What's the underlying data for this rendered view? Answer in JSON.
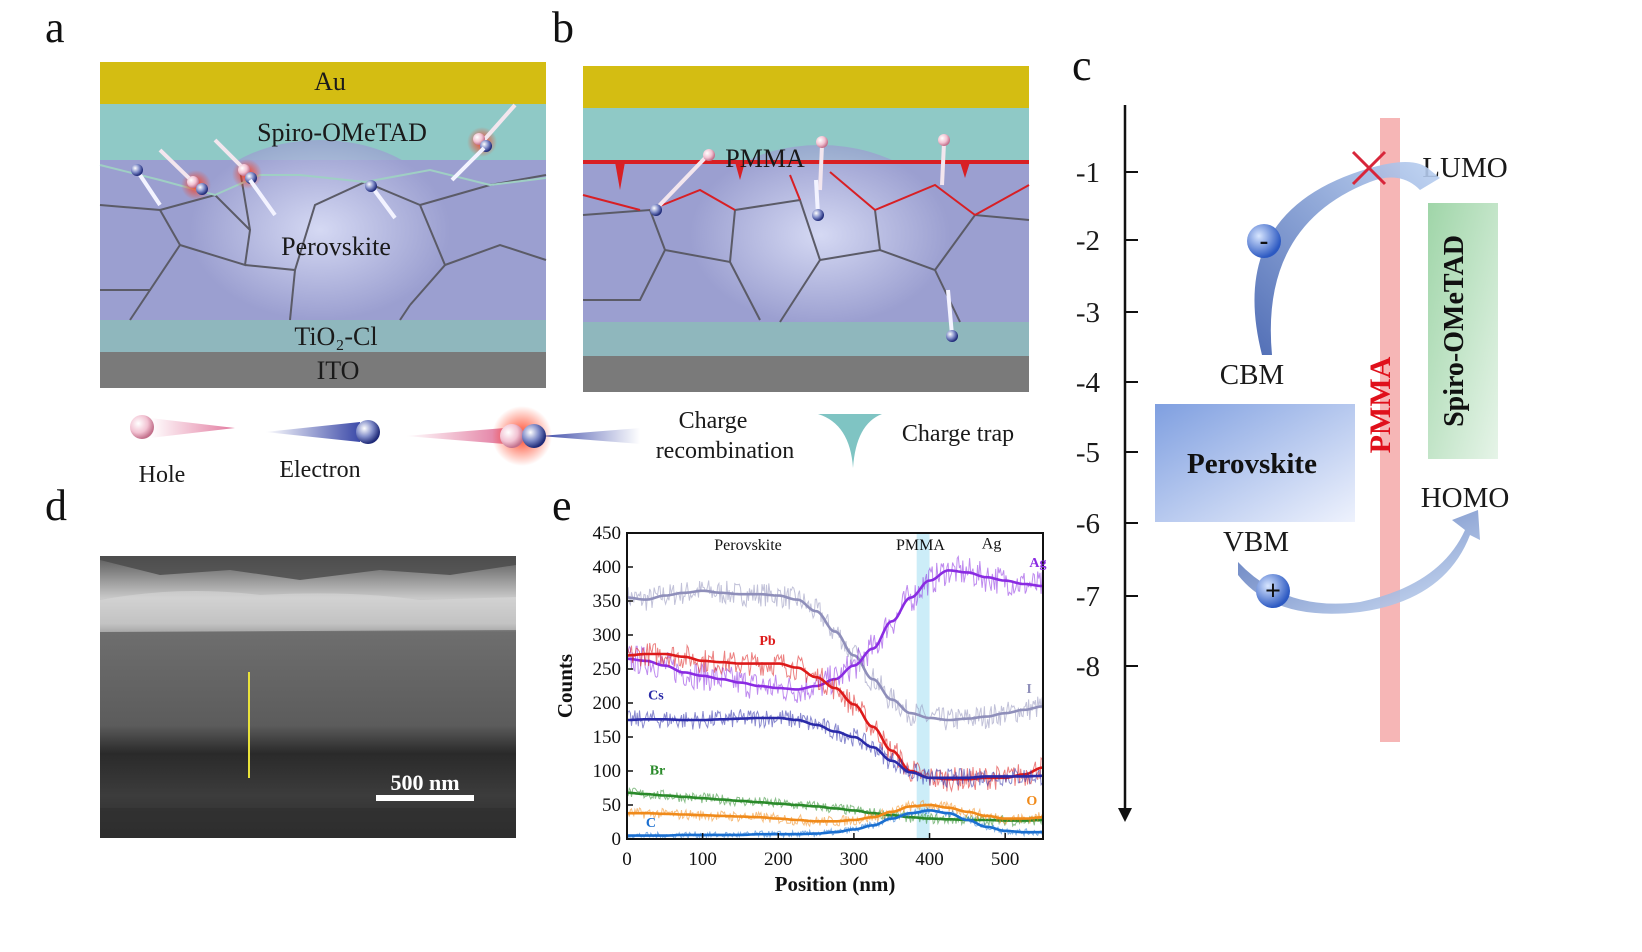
{
  "figure": {
    "panel_labels": [
      "a",
      "b",
      "c",
      "d",
      "e"
    ]
  },
  "panel_a": {
    "layers": [
      "Au",
      "Spiro-OMeTAD",
      "Perovskite",
      "TiO₂-Cl",
      "ITO"
    ]
  },
  "panel_b": {
    "pmma_label": "PMMA"
  },
  "legend": {
    "hole": "Hole",
    "electron": "Electron",
    "charge_recombination_line1": "Charge",
    "charge_recombination_line2": "recombination",
    "charge_trap": "Charge trap"
  },
  "panel_c": {
    "y_ticks": [
      "-1",
      "-2",
      "-3",
      "-4",
      "-5",
      "-6",
      "-7",
      "-8"
    ],
    "lumo": "LUMO",
    "homo": "HOMO",
    "cbm": "CBM",
    "vbm": "VBM",
    "perovskite": "Perovskite",
    "pmma": "PMMA",
    "spiro": "Spiro-OMeTAD",
    "minus": "-",
    "plus": "+",
    "colors": {
      "perovskite_box": "#7f9fe0",
      "pmma_bar": "#f6b6b6",
      "spiro_box": "#9fd5a8",
      "pmma_text": "#e0101b"
    }
  },
  "panel_d": {
    "scale_bar": "500 nm"
  },
  "chart_data": {
    "type": "line",
    "title": "",
    "xlabel": "Position (nm)",
    "ylabel": "Counts",
    "xlim": [
      0,
      550
    ],
    "ylim": [
      0,
      450
    ],
    "x_ticks": [
      "0",
      "100",
      "200",
      "300",
      "400",
      "500"
    ],
    "y_ticks": [
      "0",
      "50",
      "100",
      "150",
      "200",
      "250",
      "300",
      "350",
      "400",
      "450"
    ],
    "region_labels": {
      "perovskite": "Perovskite",
      "pmma": "PMMA",
      "ag": "Ag"
    },
    "pmma_band": [
      383,
      400
    ],
    "x": [
      0,
      25,
      50,
      75,
      100,
      125,
      150,
      175,
      200,
      225,
      250,
      275,
      300,
      325,
      350,
      375,
      400,
      425,
      450,
      475,
      500,
      525,
      550
    ],
    "series": [
      {
        "name": "I",
        "color": "#8f8fba",
        "values": [
          355,
          352,
          358,
          362,
          365,
          362,
          360,
          360,
          358,
          352,
          335,
          305,
          270,
          235,
          205,
          185,
          178,
          175,
          177,
          180,
          185,
          190,
          195
        ]
      },
      {
        "name": "Ag",
        "color": "#8a2be2",
        "values": [
          265,
          262,
          255,
          245,
          240,
          235,
          230,
          225,
          222,
          220,
          225,
          235,
          255,
          280,
          320,
          355,
          380,
          395,
          392,
          385,
          380,
          375,
          372
        ]
      },
      {
        "name": "Pb",
        "color": "#dd1a1a",
        "values": [
          270,
          272,
          272,
          268,
          262,
          260,
          258,
          258,
          258,
          252,
          238,
          222,
          198,
          165,
          130,
          100,
          90,
          88,
          88,
          90,
          90,
          95,
          105
        ]
      },
      {
        "name": "Cs",
        "color": "#2a2aa8",
        "values": [
          175,
          176,
          176,
          175,
          175,
          176,
          177,
          178,
          178,
          175,
          168,
          158,
          150,
          135,
          115,
          98,
          90,
          90,
          90,
          92,
          92,
          92,
          93
        ]
      },
      {
        "name": "Br",
        "color": "#2a8a2a",
        "values": [
          68,
          66,
          64,
          62,
          60,
          58,
          56,
          54,
          52,
          50,
          48,
          45,
          42,
          38,
          35,
          32,
          30,
          29,
          28,
          28,
          27,
          27,
          28
        ]
      },
      {
        "name": "O",
        "color": "#f08a1a",
        "values": [
          38,
          38,
          37,
          36,
          35,
          34,
          33,
          32,
          30,
          28,
          26,
          26,
          28,
          32,
          40,
          48,
          50,
          46,
          40,
          34,
          30,
          30,
          32
        ]
      },
      {
        "name": "C",
        "color": "#1a6fd0",
        "values": [
          5,
          5,
          5,
          6,
          6,
          6,
          6,
          7,
          7,
          7,
          8,
          10,
          14,
          20,
          30,
          38,
          42,
          38,
          28,
          18,
          12,
          10,
          10
        ]
      }
    ]
  }
}
